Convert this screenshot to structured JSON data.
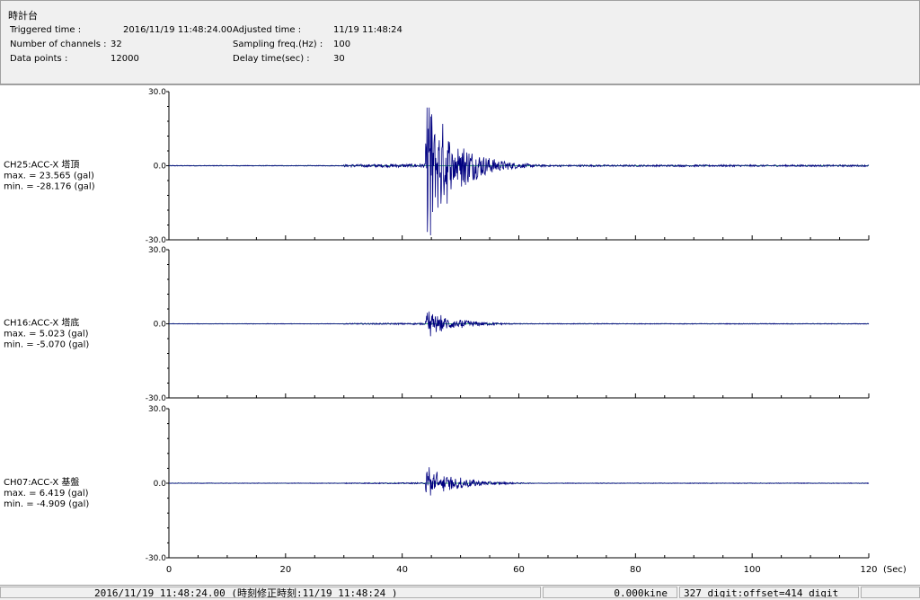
{
  "header": {
    "title": "時計台",
    "rows": [
      {
        "label": "Triggered time :",
        "value": "2016/11/19 11:48:24.00",
        "label2": "Adjusted time :",
        "value2": "11/19 11:48:24"
      },
      {
        "label": "Number of channels :",
        "value": "32",
        "label2": "Sampling freq.(Hz) :",
        "value2": "100"
      },
      {
        "label": "Data points :",
        "value": "12000",
        "label2": "Delay time(sec) :",
        "value2": "30"
      }
    ]
  },
  "chart_data": {
    "type": "line",
    "xlim": [
      0,
      120
    ],
    "x_ticks": [
      "0",
      "20",
      "40",
      "60",
      "80",
      "100",
      "120"
    ],
    "x_unit": "(Sec)",
    "ylim": [
      -30,
      30
    ],
    "y_ticks": [
      "30.0",
      "0.0",
      "-30.0"
    ],
    "line_color": "#000080",
    "channels": [
      {
        "name": "CH25:ACC-X 塔頂",
        "max_text": "max. = 23.565 (gal)",
        "min_text": "min. = -28.176 (gal)",
        "max": 23.565,
        "min": -28.176,
        "noise": 0.6,
        "pre_noise": 0.15
      },
      {
        "name": "CH16:ACC-X 塔底",
        "max_text": "max. = 5.023 (gal)",
        "min_text": "min. = -5.070 (gal)",
        "max": 5.023,
        "min": -5.07,
        "noise": 0.25,
        "pre_noise": 0.1
      },
      {
        "name": "CH07:ACC-X 基盤",
        "max_text": "max. = 6.419 (gal)",
        "min_text": "min. = -4.909 (gal)",
        "max": 6.419,
        "min": -4.909,
        "noise": 0.2,
        "pre_noise": 0.1
      }
    ]
  },
  "status": {
    "time": "2016/11/19 11:48:24.00  (時刻修正時刻:11/19 11:48:24 )",
    "kine": "0.000kine",
    "digit": "327 digit:offset=414 digit"
  }
}
